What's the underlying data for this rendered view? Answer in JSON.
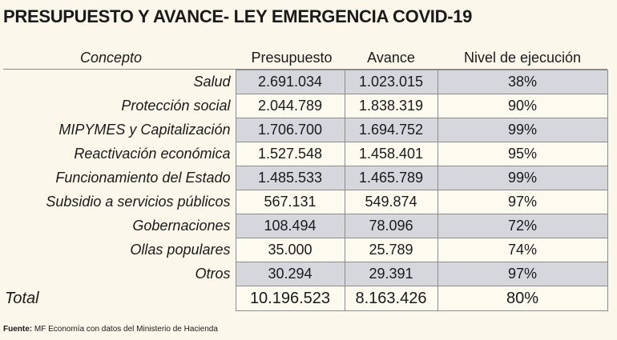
{
  "title": "PRESUPUESTO Y AVANCE- LEY EMERGENCIA COVID-19",
  "headers": [
    "Concepto",
    "Presupuesto",
    "Avance",
    "Nivel de ejecución"
  ],
  "rows": [
    {
      "concepto": "Salud",
      "presupuesto": "2.691.034",
      "avance": "1.023.015",
      "nivel": "38%"
    },
    {
      "concepto": "Protección social",
      "presupuesto": "2.044.789",
      "avance": "1.838.319",
      "nivel": "90%"
    },
    {
      "concepto": "MIPYMES y Capitalización",
      "presupuesto": "1.706.700",
      "avance": "1.694.752",
      "nivel": "99%"
    },
    {
      "concepto": "Reactivación económica",
      "presupuesto": "1.527.548",
      "avance": "1.458.401",
      "nivel": "95%"
    },
    {
      "concepto": "Funcionamiento del Estado",
      "presupuesto": "1.485.533",
      "avance": "1.465.789",
      "nivel": "99%"
    },
    {
      "concepto": "Subsidio a servicios públicos",
      "presupuesto": "567.131",
      "avance": "549.874",
      "nivel": "97%"
    },
    {
      "concepto": "Gobernaciones",
      "presupuesto": "108.494",
      "avance": "78.096",
      "nivel": "72%"
    },
    {
      "concepto": "Ollas populares",
      "presupuesto": "35.000",
      "avance": "25.789",
      "nivel": "74%"
    },
    {
      "concepto": "Otros",
      "presupuesto": "30.294",
      "avance": "29.391",
      "nivel": "97%"
    }
  ],
  "total": {
    "concepto": "Total",
    "presupuesto": "10.196.523",
    "avance": "8.163.426",
    "nivel": "80%"
  },
  "source": {
    "label": "Fuente:",
    "text": "MF Economía con datos del Ministerio de Hacienda"
  },
  "colors": {
    "background": "#fcf7eb",
    "shaded_row": "#d5d7dd",
    "plain_row": "#fdfaf0"
  }
}
